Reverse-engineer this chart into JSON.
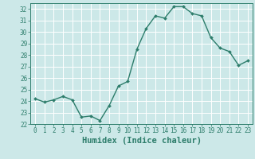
{
  "x": [
    0,
    1,
    2,
    3,
    4,
    5,
    6,
    7,
    8,
    9,
    10,
    11,
    12,
    13,
    14,
    15,
    16,
    17,
    18,
    19,
    20,
    21,
    22,
    23
  ],
  "y": [
    24.2,
    23.9,
    24.1,
    24.4,
    24.1,
    22.6,
    22.7,
    22.3,
    23.6,
    25.3,
    25.7,
    28.5,
    30.3,
    31.4,
    31.2,
    32.2,
    32.2,
    31.6,
    31.4,
    29.5,
    28.6,
    28.3,
    27.1,
    27.5
  ],
  "xlabel": "Humidex (Indice chaleur)",
  "ylim": [
    22,
    32.5
  ],
  "xlim": [
    -0.5,
    23.5
  ],
  "yticks": [
    22,
    23,
    24,
    25,
    26,
    27,
    28,
    29,
    30,
    31,
    32
  ],
  "xticks": [
    0,
    1,
    2,
    3,
    4,
    5,
    6,
    7,
    8,
    9,
    10,
    11,
    12,
    13,
    14,
    15,
    16,
    17,
    18,
    19,
    20,
    21,
    22,
    23
  ],
  "line_color": "#2d7d6b",
  "bg_color": "#cce8e8",
  "grid_color": "#ffffff",
  "tick_label_fontsize": 5.5,
  "xlabel_fontsize": 7.5,
  "line_width": 1.0,
  "marker_size": 2.0
}
